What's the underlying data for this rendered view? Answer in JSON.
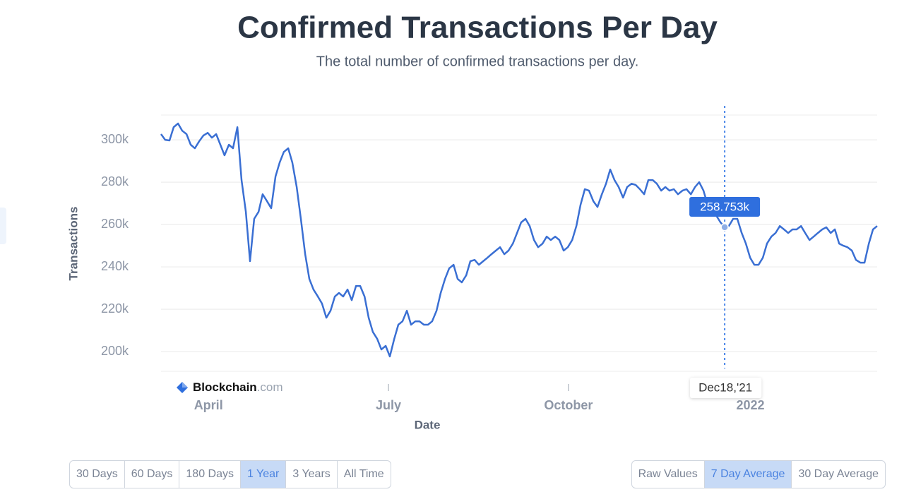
{
  "chart_data": {
    "type": "line",
    "title": "Confirmed Transactions Per Day",
    "subtitle": "The total number of confirmed transactions per day.",
    "y_label": "Transactions",
    "x_label": "Date",
    "brand": {
      "name": "Blockchain",
      "suffix": ".com"
    },
    "x": [
      0,
      2.1,
      4.3,
      6.4,
      8.6,
      10.7,
      12.9,
      15,
      17.1,
      19.3,
      21.4,
      23.6,
      25.7,
      27.9,
      30,
      32.1,
      34.3,
      36.4,
      38.6,
      40.7,
      42.9,
      45,
      47.1,
      49.3,
      51.4,
      53.6,
      55.7,
      57.9,
      60,
      62.1,
      64.3,
      66.4,
      68.6,
      70.7,
      72.9,
      75,
      77.1,
      79.3,
      81.4,
      83.6,
      85.7,
      87.9,
      90,
      92.1,
      94.3,
      96.4,
      98.6,
      100.7,
      102.9,
      105,
      107.1,
      109.3,
      111.4,
      113.6,
      115.7,
      117.9,
      120,
      122.1,
      124.3,
      126.4,
      128.6,
      130.7,
      132.9,
      135,
      137.1,
      139.3,
      141.4,
      143.6,
      145.7,
      147.9,
      150,
      152.1,
      154.3,
      156.4,
      158.6,
      160.7,
      162.9,
      165,
      167.1,
      169.3,
      171.4,
      173.6,
      175.7,
      177.9,
      180,
      182.1,
      184.3,
      186.4,
      188.6,
      190.7,
      192.9,
      195,
      197.1,
      199.3,
      201.4,
      203.6,
      205.7,
      207.9,
      210,
      212.1,
      214.3,
      216.4,
      218.6,
      220.7,
      222.9,
      225,
      227.1,
      229.3,
      231.4,
      233.6,
      235.7,
      237.9,
      240,
      242.1,
      244.3,
      246.4,
      248.6,
      250.7,
      252.9,
      255,
      257.1,
      259.3,
      261.4,
      263.6,
      265.7,
      267.9,
      270,
      272.1,
      274.3,
      276.4,
      278.6,
      280.7,
      282.9,
      285,
      287.1,
      289.3,
      291.4,
      293.6,
      295.7,
      297.9,
      300,
      302.1,
      304.3,
      306.4,
      308.6,
      310.7,
      312.9,
      315,
      317.1,
      319.3,
      321.4,
      323.6,
      325.7,
      327.9,
      330,
      332.1,
      334.3,
      336.4,
      338.6,
      340.7,
      342.9,
      345,
      347.1,
      349.3,
      351.4,
      353.6,
      355.7,
      357.9,
      360,
      362.1
    ],
    "series": [
      {
        "color": "#3a6fd3",
        "values": [
          302700,
          300000,
          299700,
          306000,
          307700,
          304300,
          302700,
          297700,
          296000,
          299300,
          302000,
          303300,
          301000,
          302700,
          297700,
          292700,
          297700,
          296000,
          306000,
          281000,
          266000,
          242700,
          262700,
          266000,
          274300,
          271000,
          267700,
          282700,
          289300,
          294300,
          296000,
          289300,
          277700,
          262700,
          246000,
          234300,
          229300,
          226000,
          222700,
          216000,
          219300,
          226000,
          227700,
          226000,
          229300,
          224300,
          231000,
          231000,
          226000,
          216000,
          209300,
          206000,
          201000,
          202700,
          197700,
          206000,
          212700,
          214300,
          219300,
          212700,
          214300,
          214300,
          212700,
          212700,
          214300,
          219300,
          227700,
          234300,
          239300,
          241000,
          234300,
          232700,
          236000,
          242700,
          243300,
          241000,
          242700,
          244300,
          246000,
          247700,
          249300,
          246000,
          247700,
          251000,
          256000,
          261000,
          262700,
          259300,
          252700,
          249300,
          251000,
          254300,
          252700,
          254300,
          252700,
          247700,
          249300,
          252700,
          259300,
          269300,
          276700,
          276000,
          271000,
          268300,
          274300,
          279300,
          286000,
          281000,
          277700,
          272700,
          277700,
          279300,
          278700,
          276700,
          274300,
          281000,
          281000,
          279300,
          276000,
          277700,
          276000,
          276700,
          274300,
          276000,
          276700,
          274300,
          277700,
          280000,
          276000,
          269300,
          264300,
          264300,
          261000,
          258753,
          259300,
          262700,
          262700,
          256000,
          251000,
          244300,
          241000,
          241000,
          244300,
          251000,
          254300,
          256000,
          259300,
          257700,
          256000,
          257700,
          257700,
          259300,
          256000,
          252700,
          254300,
          256000,
          257700,
          258700,
          256000,
          257700,
          251000,
          250000,
          249300,
          247700,
          243300,
          242000,
          242000,
          251000,
          257700,
          259300
        ]
      }
    ],
    "xlim": [
      0,
      362.1
    ],
    "xticks": [
      {
        "value": 24,
        "label": "April"
      },
      {
        "value": 115,
        "label": "July"
      },
      {
        "value": 206,
        "label": "October"
      },
      {
        "value": 298,
        "label": "2022"
      }
    ],
    "ylim": [
      190700,
      311700
    ],
    "yticks": [
      {
        "value": 200000,
        "label": "200k"
      },
      {
        "value": 220000,
        "label": "220k"
      },
      {
        "value": 240000,
        "label": "240k"
      },
      {
        "value": 260000,
        "label": "260k"
      },
      {
        "value": 280000,
        "label": "280k"
      },
      {
        "value": 300000,
        "label": "300k"
      }
    ],
    "grid": true,
    "tooltip": {
      "x": 285,
      "x_label": "Dec18,'21",
      "value": 258753,
      "value_label": "258.753k"
    }
  },
  "controls": {
    "ranges": {
      "options": [
        "30 Days",
        "60 Days",
        "180 Days",
        "1 Year",
        "3 Years",
        "All Time"
      ],
      "selected": 3
    },
    "averages": {
      "options": [
        "Raw Values",
        "7 Day Average",
        "30 Day Average"
      ],
      "selected": 1
    }
  }
}
